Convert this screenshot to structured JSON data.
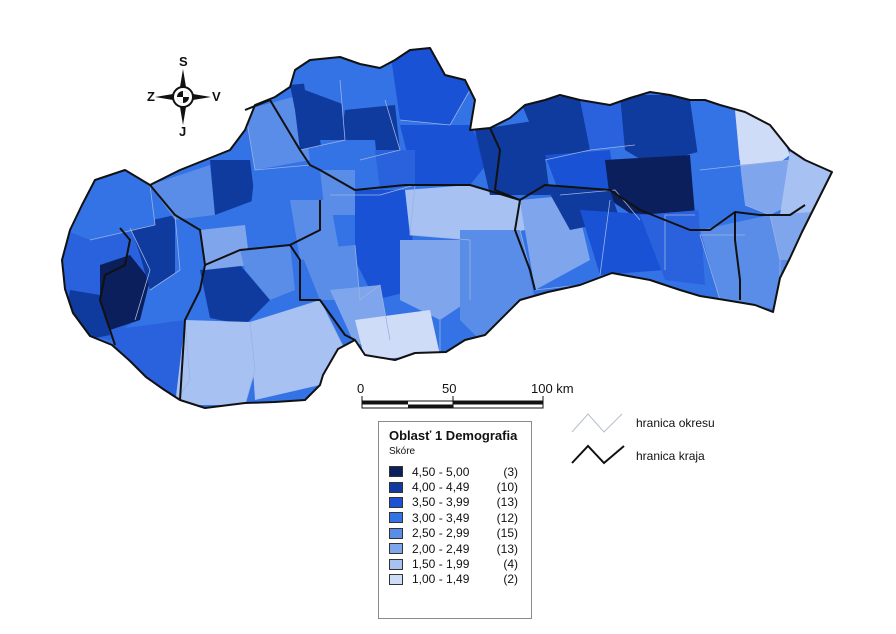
{
  "compass": {
    "north": "S",
    "east": "V",
    "south": "J",
    "west": "Z"
  },
  "scale_bar": {
    "labels": [
      "0",
      "50",
      "100 km"
    ]
  },
  "legend": {
    "title": "Oblasť 1 Demografia",
    "subtitle": "Skóre",
    "classes": [
      {
        "range": "4,50 - 5,00",
        "count": "(3)",
        "color": "#0b1f5c"
      },
      {
        "range": "4,00 - 4,49",
        "count": "(10)",
        "color": "#0f3a9e"
      },
      {
        "range": "3,50 - 3,99",
        "count": "(13)",
        "color": "#1a52d6"
      },
      {
        "range": "3,00 - 3,49",
        "count": "(12)",
        "color": "#3473e6"
      },
      {
        "range": "2,50 - 2,99",
        "count": "(15)",
        "color": "#5a8de8"
      },
      {
        "range": "2,00 - 2,49",
        "count": "(13)",
        "color": "#7fa6ec"
      },
      {
        "range": "1,50 - 1,99",
        "count": "(4)",
        "color": "#a7c1f2"
      },
      {
        "range": "1,00 - 1,49",
        "count": "(2)",
        "color": "#cfdcf8"
      }
    ]
  },
  "boundary_legend": {
    "district": "hranica okresu",
    "region": "hranica kraja"
  }
}
